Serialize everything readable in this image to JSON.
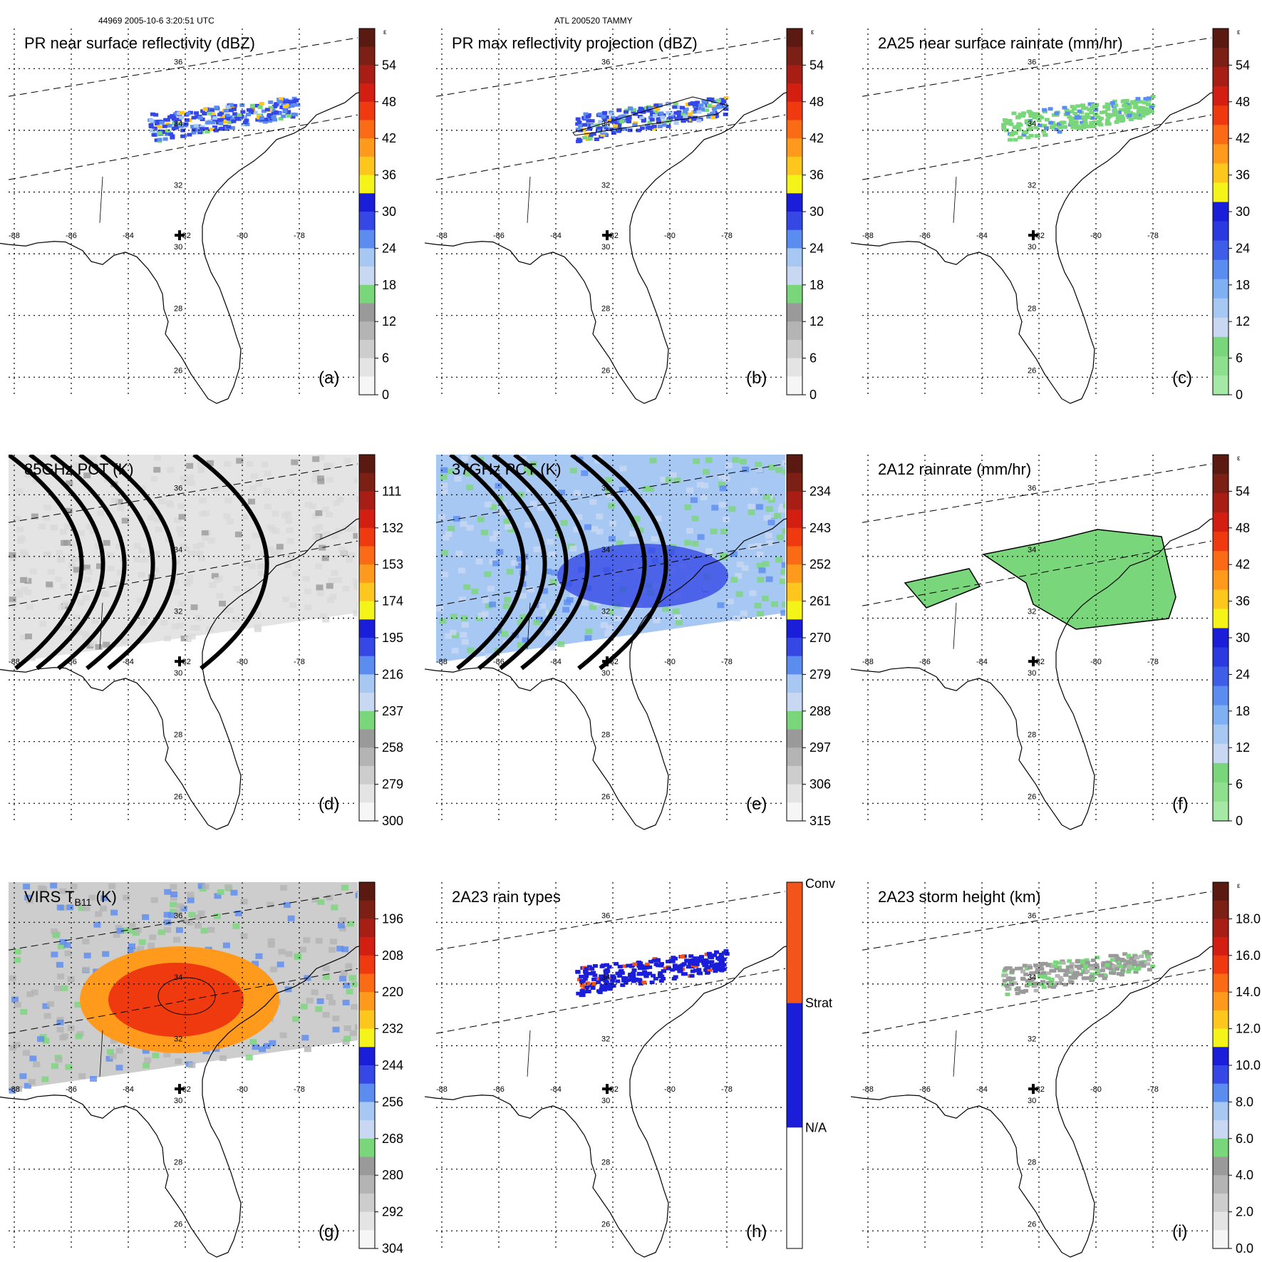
{
  "header": {
    "orbit_info": "44969 2005-10-6 3:20:51 UTC",
    "storm_info": "ATL 200520 TAMMY"
  },
  "colors": {
    "land_outline": "#000000",
    "grid": "#000000",
    "swath_edge": "#333333"
  },
  "chart_data": [
    {
      "id": "a",
      "type": "heatmap",
      "title": "PR near surface reflectivity (dBZ)",
      "panel_label": "(a)",
      "colorbar": {
        "ticks": [
          "54",
          "48",
          "42",
          "36",
          "30",
          "24",
          "18",
          "12",
          "6",
          "0"
        ],
        "top_label": "ε",
        "colors": [
          "#5a1a12",
          "#7c1f14",
          "#a81e14",
          "#d21f12",
          "#ef3a10",
          "#fb6a14",
          "#ff9a1c",
          "#ffc61e",
          "#f4f419",
          "#1a1ed8",
          "#3548e6",
          "#5b8cf0",
          "#a8c8f4",
          "#c8d8f2",
          "#7ad67a",
          "#9a9a9a",
          "#b4b4b4",
          "#cdcdcd",
          "#e4e4e4",
          "#f6f6f6"
        ]
      },
      "lat_ticks": [
        "36",
        "34",
        "32",
        "30",
        "28",
        "26"
      ],
      "lon_ticks": [
        "-88",
        "-86",
        "-84",
        "-82",
        "-80",
        "-78"
      ],
      "field": "pr_band"
    },
    {
      "id": "b",
      "type": "heatmap",
      "title": "PR max reflectivity projection (dBZ)",
      "panel_label": "(b)",
      "colorbar": {
        "ticks": [
          "54",
          "48",
          "42",
          "36",
          "30",
          "24",
          "18",
          "12",
          "6",
          "0"
        ],
        "top_label": "ε",
        "colors": [
          "#5a1a12",
          "#7c1f14",
          "#a81e14",
          "#d21f12",
          "#ef3a10",
          "#fb6a14",
          "#ff9a1c",
          "#ffc61e",
          "#f4f419",
          "#1a1ed8",
          "#3548e6",
          "#5b8cf0",
          "#a8c8f4",
          "#c8d8f2",
          "#7ad67a",
          "#9a9a9a",
          "#b4b4b4",
          "#cdcdcd",
          "#e4e4e4",
          "#f6f6f6"
        ]
      },
      "lat_ticks": [
        "36",
        "34",
        "32",
        "30",
        "28",
        "26"
      ],
      "lon_ticks": [
        "-88",
        "-86",
        "-84",
        "-82",
        "-80",
        "-78"
      ],
      "field": "pr_band_max"
    },
    {
      "id": "c",
      "type": "heatmap",
      "title": "2A25 near surface rainrate (mm/hr)",
      "panel_label": "(c)",
      "colorbar": {
        "ticks": [
          "54",
          "48",
          "42",
          "36",
          "30",
          "24",
          "18",
          "12",
          "6",
          "0"
        ],
        "top_label": "ε",
        "colors": [
          "#5a1a12",
          "#7c1f14",
          "#a81e14",
          "#d21f12",
          "#ef3a10",
          "#fb6a14",
          "#ff9a1c",
          "#ffc61e",
          "#f4f419",
          "#1a1ed8",
          "#2a3ae0",
          "#3f5ee8",
          "#5b8cf0",
          "#7fb0f4",
          "#a8c8f4",
          "#c8d8f2",
          "#7ad67a",
          "#8ee08e",
          "#a6e8a6"
        ]
      },
      "lat_ticks": [
        "36",
        "34",
        "32",
        "30",
        "28",
        "26"
      ],
      "lon_ticks": [
        "-88",
        "-86",
        "-84",
        "-82",
        "-80",
        "-78"
      ],
      "field": "rain_band"
    },
    {
      "id": "d",
      "type": "heatmap",
      "title": "85GHz PCT (K)",
      "panel_label": "(d)",
      "colorbar": {
        "ticks": [
          "111",
          "132",
          "153",
          "174",
          "195",
          "216",
          "237",
          "258",
          "279",
          "300"
        ],
        "top_label": "",
        "colors": [
          "#5a1a12",
          "#7c1f14",
          "#a81e14",
          "#d21f12",
          "#ef3a10",
          "#fb6a14",
          "#ff9a1c",
          "#ffc61e",
          "#f4f419",
          "#1a1ed8",
          "#3548e6",
          "#5b8cf0",
          "#a8c8f4",
          "#c8d8f2",
          "#7ad67a",
          "#9a9a9a",
          "#b4b4b4",
          "#cdcdcd",
          "#e4e4e4",
          "#f6f6f6"
        ]
      },
      "lat_ticks": [
        "36",
        "34",
        "32",
        "30",
        "28",
        "26"
      ],
      "lon_ticks": [
        "-88",
        "-86",
        "-84",
        "-82",
        "-80",
        "-78"
      ],
      "field": "tmi85"
    },
    {
      "id": "e",
      "type": "heatmap",
      "title": "37GHz PCT (K)",
      "panel_label": "(e)",
      "colorbar": {
        "ticks": [
          "234",
          "243",
          "252",
          "261",
          "270",
          "279",
          "288",
          "297",
          "306",
          "315"
        ],
        "top_label": "",
        "colors": [
          "#5a1a12",
          "#7c1f14",
          "#a81e14",
          "#d21f12",
          "#ef3a10",
          "#fb6a14",
          "#ff9a1c",
          "#ffc61e",
          "#f4f419",
          "#1a1ed8",
          "#3548e6",
          "#5b8cf0",
          "#a8c8f4",
          "#c8d8f2",
          "#7ad67a",
          "#9a9a9a",
          "#b4b4b4",
          "#cdcdcd",
          "#e4e4e4",
          "#f6f6f6"
        ]
      },
      "lat_ticks": [
        "36",
        "34",
        "32",
        "30",
        "28",
        "26"
      ],
      "lon_ticks": [
        "-88",
        "-86",
        "-84",
        "-82",
        "-80",
        "-78"
      ],
      "field": "tmi37"
    },
    {
      "id": "f",
      "type": "heatmap",
      "title": "2A12 rainrate (mm/hr)",
      "panel_label": "(f)",
      "colorbar": {
        "ticks": [
          "54",
          "48",
          "42",
          "36",
          "30",
          "24",
          "18",
          "12",
          "6",
          "0"
        ],
        "top_label": "ε",
        "colors": [
          "#5a1a12",
          "#7c1f14",
          "#a81e14",
          "#d21f12",
          "#ef3a10",
          "#fb6a14",
          "#ff9a1c",
          "#ffc61e",
          "#f4f419",
          "#1a1ed8",
          "#2a3ae0",
          "#3f5ee8",
          "#5b8cf0",
          "#7fb0f4",
          "#a8c8f4",
          "#c8d8f2",
          "#7ad67a",
          "#8ee08e",
          "#a6e8a6"
        ]
      },
      "lat_ticks": [
        "36",
        "34",
        "32",
        "30",
        "28",
        "26"
      ],
      "lon_ticks": [
        "-88",
        "-86",
        "-84",
        "-82",
        "-80",
        "-78"
      ],
      "field": "rain2a12"
    },
    {
      "id": "g",
      "type": "heatmap",
      "title": "VIRS T",
      "title_sub": "B11",
      "title_tail": " (K)",
      "panel_label": "(g)",
      "colorbar": {
        "ticks": [
          "196",
          "208",
          "220",
          "232",
          "244",
          "256",
          "268",
          "280",
          "292",
          "304"
        ],
        "top_label": "",
        "colors": [
          "#5a1a12",
          "#7c1f14",
          "#a81e14",
          "#d21f12",
          "#ef3a10",
          "#fb6a14",
          "#ff9a1c",
          "#ffc61e",
          "#f4f419",
          "#1a1ed8",
          "#3548e6",
          "#5b8cf0",
          "#a8c8f4",
          "#c8d8f2",
          "#7ad67a",
          "#9a9a9a",
          "#b4b4b4",
          "#cdcdcd",
          "#e4e4e4",
          "#f6f6f6"
        ]
      },
      "lat_ticks": [
        "36",
        "34",
        "32",
        "30",
        "28",
        "26"
      ],
      "lon_ticks": [
        "-88",
        "-86",
        "-84",
        "-82",
        "-80",
        "-78"
      ],
      "field": "virs"
    },
    {
      "id": "h",
      "type": "heatmap",
      "title": "2A23 rain types",
      "panel_label": "(h)",
      "colorbar": {
        "ticks": [
          "Conv",
          "Strat",
          "N/A"
        ],
        "top_label": "",
        "categorical": true,
        "colors": [
          "#f2541a",
          "#1a1ed8",
          "#ffffff"
        ]
      },
      "lat_ticks": [
        "36",
        "34",
        "32",
        "30",
        "28",
        "26"
      ],
      "lon_ticks": [
        "-88",
        "-86",
        "-84",
        "-82",
        "-80",
        "-78"
      ],
      "field": "raintype"
    },
    {
      "id": "i",
      "type": "heatmap",
      "title": "2A23 storm height (km)",
      "panel_label": "(i)",
      "colorbar": {
        "ticks": [
          "18.0",
          "16.0",
          "14.0",
          "12.0",
          "10.0",
          "8.0",
          "6.0",
          "4.0",
          "2.0",
          "0.0"
        ],
        "top_label": "ε",
        "colors": [
          "#5a1a12",
          "#7c1f14",
          "#a81e14",
          "#d21f12",
          "#ef3a10",
          "#fb6a14",
          "#ff9a1c",
          "#ffc61e",
          "#f4f419",
          "#1a1ed8",
          "#3548e6",
          "#5b8cf0",
          "#a8c8f4",
          "#c8d8f2",
          "#7ad67a",
          "#9a9a9a",
          "#b4b4b4",
          "#cdcdcd",
          "#e4e4e4",
          "#f6f6f6"
        ]
      },
      "lat_ticks": [
        "36",
        "34",
        "32",
        "30",
        "28",
        "26"
      ],
      "lon_ticks": [
        "-88",
        "-86",
        "-84",
        "-82",
        "-80",
        "-78"
      ],
      "field": "stormheight"
    }
  ]
}
